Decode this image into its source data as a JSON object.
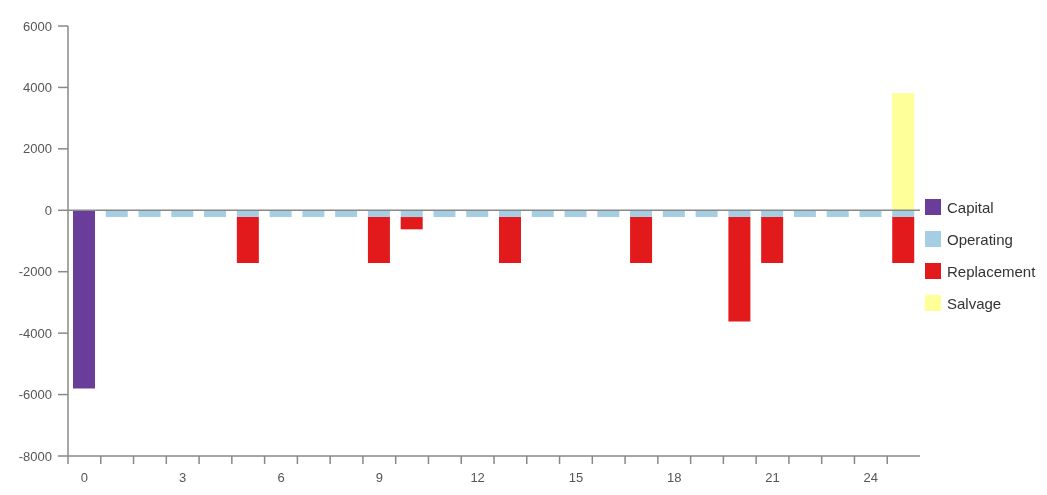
{
  "chart_data": {
    "type": "bar",
    "stacked": true,
    "categories": [
      "0",
      null,
      null,
      "3",
      null,
      null,
      "6",
      null,
      null,
      "9",
      null,
      null,
      "12",
      null,
      null,
      "15",
      null,
      null,
      "18",
      null,
      null,
      "21",
      null,
      null,
      "24",
      null
    ],
    "series": [
      {
        "name": "Capital",
        "color": "#6a3d9a",
        "values": [
          -5800,
          null,
          null,
          null,
          null,
          null,
          null,
          null,
          null,
          null,
          null,
          null,
          null,
          null,
          null,
          null,
          null,
          null,
          null,
          null,
          null,
          null,
          null,
          null,
          null,
          null
        ]
      },
      {
        "name": "Operating",
        "color": "#a6cee3",
        "values": [
          null,
          -220,
          -220,
          -220,
          -220,
          -220,
          -220,
          -220,
          -220,
          -220,
          -220,
          -220,
          -220,
          -220,
          -220,
          -220,
          -220,
          -220,
          -220,
          -220,
          -220,
          -220,
          -220,
          -220,
          -220,
          -220
        ]
      },
      {
        "name": "Replacement",
        "color": "#e31a1c",
        "values": [
          null,
          null,
          null,
          null,
          null,
          -1500,
          null,
          null,
          null,
          -1500,
          -400,
          null,
          null,
          -1500,
          null,
          null,
          null,
          -1500,
          null,
          null,
          -3400,
          -1500,
          null,
          null,
          null,
          -1500
        ]
      },
      {
        "name": "Salvage",
        "color": "#ffff99",
        "values": [
          null,
          null,
          null,
          null,
          null,
          null,
          null,
          null,
          null,
          null,
          null,
          null,
          null,
          null,
          null,
          null,
          null,
          null,
          null,
          null,
          null,
          null,
          null,
          null,
          null,
          3820
        ]
      }
    ],
    "ylim": [
      -8000,
      6000
    ],
    "yticks": [
      -8000,
      -6000,
      -4000,
      -2000,
      0,
      2000,
      4000,
      6000
    ],
    "ref_lines": [
      {
        "axis": "y",
        "value": 0,
        "color": "#888888"
      }
    ],
    "legend": "right"
  }
}
